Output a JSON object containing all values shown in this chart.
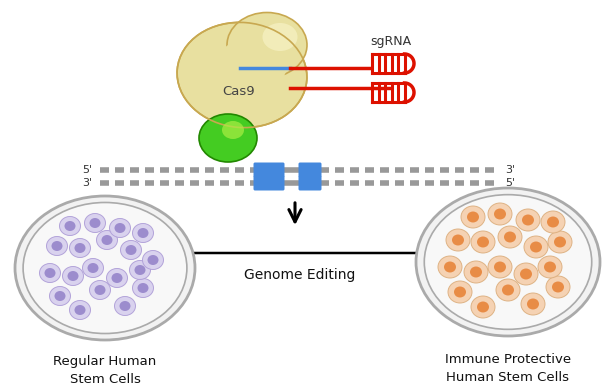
{
  "bg_color": "#ffffff",
  "cas9_color": "#e8e0a0",
  "cas9_edge": "#c8a850",
  "green_color": "#44cc22",
  "green_edge": "#228800",
  "green_light": "#aaee44",
  "sgrna_color": "#dd1100",
  "dna_blue": "#4488dd",
  "dna_gray": "#999999",
  "label_cas9": "Cas9",
  "label_sgrna": "sgRNA",
  "label_genome": "Genome Editing",
  "label_left": "Regular Human\nStem Cells",
  "label_right": "Immune Protective\nHuman Stem Cells",
  "cell_lavender_outer": "#d8d0ee",
  "cell_lavender_inner": "#9988cc",
  "cell_orange_outer": "#f5d0b0",
  "cell_orange_inner": "#e88840",
  "petri_edge": "#aaaaaa",
  "petri_fill": "#f2f2f2",
  "petri_inner_fill": "#f8f8f8"
}
